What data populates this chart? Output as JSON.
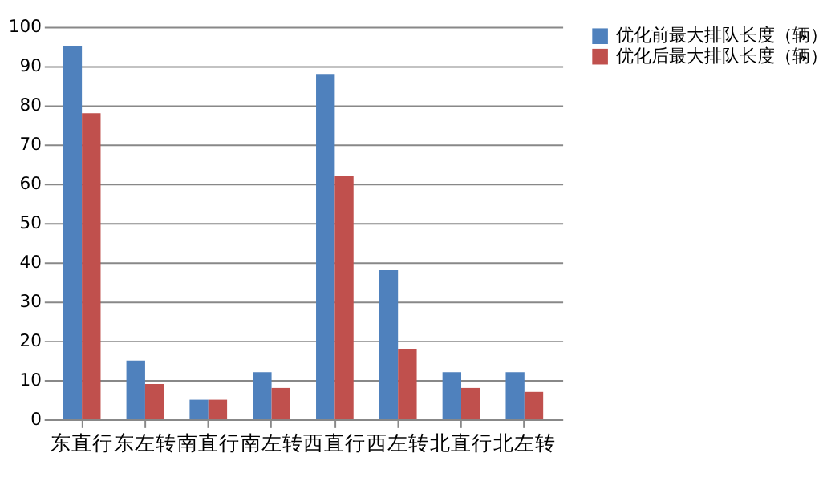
{
  "chart_data": {
    "type": "bar",
    "categories": [
      "东直行",
      "东左转",
      "南直行",
      "南左转",
      "西直行",
      "西左转",
      "北直行",
      "北左转"
    ],
    "series": [
      {
        "name": "优化前最大排队长度（辆）",
        "color": "#4f81bd",
        "values": [
          95,
          15,
          5,
          12,
          88,
          38,
          12,
          12
        ]
      },
      {
        "name": "优化后最大排队长度（辆）",
        "color": "#c0504d",
        "values": [
          78,
          9,
          5,
          8,
          62,
          18,
          8,
          7
        ]
      }
    ],
    "ylim": [
      0,
      100
    ],
    "yticks": [
      0,
      10,
      20,
      30,
      40,
      50,
      60,
      70,
      80,
      90,
      100
    ],
    "grid": "y",
    "legend": "right"
  }
}
